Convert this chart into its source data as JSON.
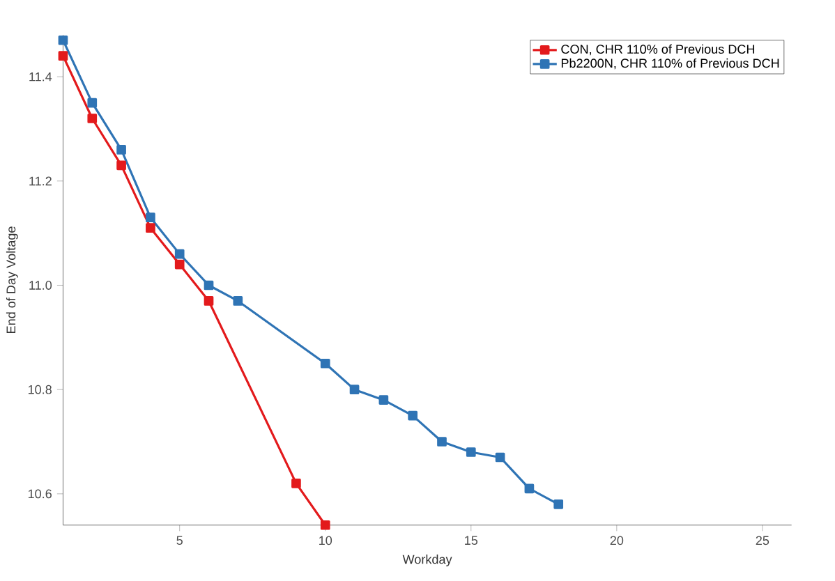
{
  "chart_data": {
    "type": "line",
    "xlabel": "Workday",
    "ylabel": "End of Day Voltage",
    "xlim": [
      1,
      26
    ],
    "ylim": [
      10.54,
      11.48
    ],
    "xticks": [
      5,
      10,
      15,
      20,
      25
    ],
    "yticks": [
      10.6,
      10.8,
      {
        "value": 11,
        "label": "11.0"
      },
      11.2,
      11.4
    ],
    "grid": false,
    "legend": "top right",
    "marker": "square",
    "line_style": "solid",
    "series": [
      {
        "name": "CON, CHR 110% of Previous DCH",
        "color": "#e31a1c",
        "x": [
          1,
          2,
          3,
          4,
          5,
          6,
          9,
          10
        ],
        "values": [
          11.44,
          11.32,
          11.23,
          11.11,
          11.04,
          10.97,
          10.62,
          10.54
        ]
      },
      {
        "name": "Pb2200N, CHR 110% of Previous DCH",
        "color": "#2f74b5",
        "x": [
          1,
          2,
          3,
          4,
          5,
          6,
          7,
          10,
          11,
          12,
          13,
          14,
          15,
          16,
          17,
          18
        ],
        "values": [
          11.47,
          11.35,
          11.26,
          11.13,
          11.06,
          11.0,
          10.97,
          10.85,
          10.8,
          10.78,
          10.75,
          10.7,
          10.68,
          10.67,
          10.61,
          10.58
        ]
      }
    ]
  }
}
